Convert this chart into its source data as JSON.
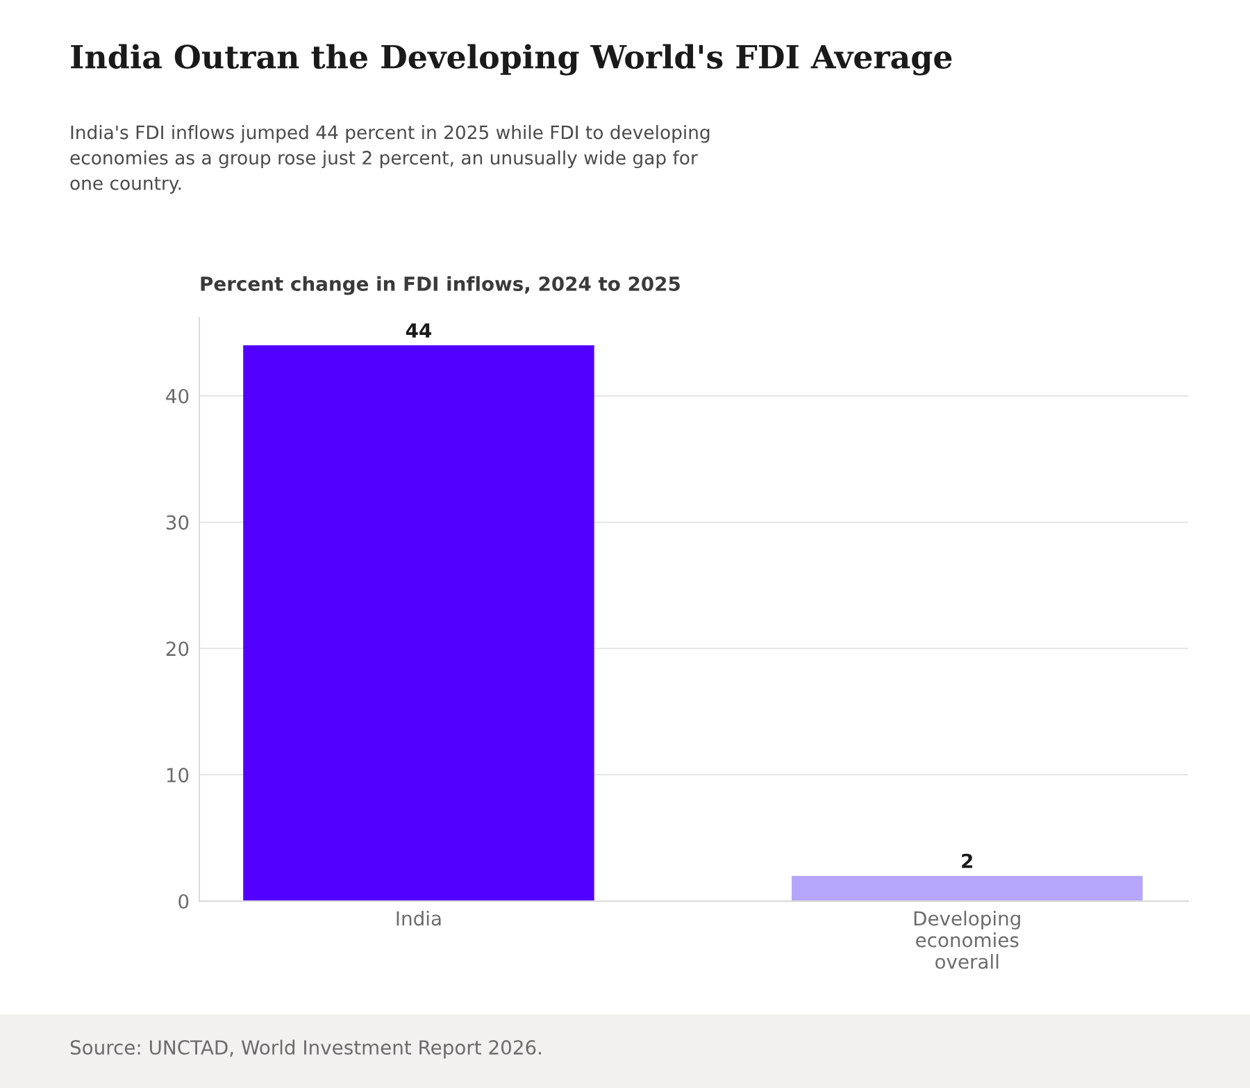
{
  "chart_data": {
    "type": "bar",
    "title": "India Outran the Developing World's FDI Average",
    "subtitle": "India's FDI inflows jumped 44 percent in 2025 while FDI to developing\neconomies as a group rose just 2 percent, an unusually wide gap for\none country.",
    "ylabel": "Percent change in FDI inflows, 2024 to 2025",
    "categories": [
      "India",
      "Developing\neconomies\noverall"
    ],
    "values": [
      44,
      2
    ],
    "colors": [
      "#5200ff",
      "#b5a6fb"
    ],
    "ylim": [
      0,
      46.2
    ],
    "yticks": [
      0,
      10,
      20,
      30,
      40
    ],
    "grid": "y",
    "data_labels": true,
    "legend": false,
    "annotations": [
      "Source: UNCTAD, World Investment Report 2026."
    ]
  }
}
